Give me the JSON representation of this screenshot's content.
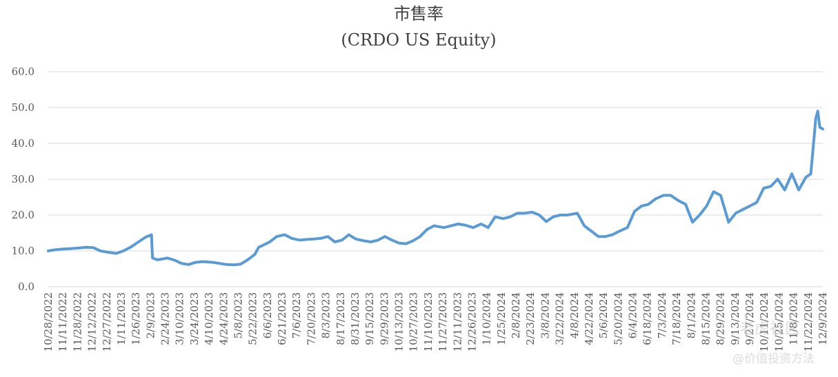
{
  "chart_data": {
    "type": "line",
    "title": "市售率",
    "subtitle": "(CRDO US Equity)",
    "ylim": [
      0,
      60
    ],
    "yticks": [
      "0.0",
      "10.0",
      "20.0",
      "30.0",
      "40.0",
      "50.0",
      "60.0"
    ],
    "grid": true,
    "legend": "none",
    "color": "#5b9bd5",
    "x_start": "2022-10-28",
    "x_end": "2024-12-09",
    "xtick_labels": [
      "10/28/2022",
      "11/11/2022",
      "11/28/2022",
      "12/12/2022",
      "12/27/2022",
      "1/11/2023",
      "1/26/2023",
      "2/9/2023",
      "2/24/2023",
      "3/10/2023",
      "3/24/2023",
      "4/10/2023",
      "4/24/2023",
      "5/8/2023",
      "5/22/2023",
      "6/6/2023",
      "6/21/2023",
      "7/6/2023",
      "7/20/2023",
      "8/3/2023",
      "8/17/2023",
      "8/31/2023",
      "9/15/2023",
      "9/29/2023",
      "10/13/2023",
      "10/27/2023",
      "11/10/2023",
      "11/27/2023",
      "12/11/2023",
      "12/26/2023",
      "1/10/2024",
      "1/25/2024",
      "2/8/2024",
      "2/23/2024",
      "3/8/2024",
      "3/22/2024",
      "4/8/2024",
      "4/22/2024",
      "5/6/2024",
      "5/20/2024",
      "6/4/2024",
      "6/18/2024",
      "7/3/2024",
      "7/18/2024",
      "8/1/2024",
      "8/15/2024",
      "8/29/2024",
      "9/13/2024",
      "9/27/2024",
      "10/11/2024",
      "10/25/2024",
      "11/8/2024",
      "11/22/2024",
      "12/9/2024"
    ],
    "series": [
      {
        "x": [
          "2022-10-28",
          "2022-11-04",
          "2022-11-11",
          "2022-11-18",
          "2022-11-28",
          "2022-12-05",
          "2022-12-12",
          "2022-12-19",
          "2022-12-27",
          "2023-01-04",
          "2023-01-11",
          "2023-01-18",
          "2023-01-26",
          "2023-02-02",
          "2023-02-08",
          "2023-02-09",
          "2023-02-14",
          "2023-02-24",
          "2023-03-03",
          "2023-03-10",
          "2023-03-17",
          "2023-03-24",
          "2023-03-31",
          "2023-04-10",
          "2023-04-17",
          "2023-04-24",
          "2023-05-01",
          "2023-05-08",
          "2023-05-15",
          "2023-05-22",
          "2023-05-26",
          "2023-06-06",
          "2023-06-13",
          "2023-06-21",
          "2023-06-28",
          "2023-07-06",
          "2023-07-13",
          "2023-07-20",
          "2023-07-27",
          "2023-08-03",
          "2023-08-10",
          "2023-08-17",
          "2023-08-24",
          "2023-08-31",
          "2023-09-08",
          "2023-09-15",
          "2023-09-22",
          "2023-09-29",
          "2023-10-06",
          "2023-10-13",
          "2023-10-20",
          "2023-10-27",
          "2023-11-03",
          "2023-11-10",
          "2023-11-17",
          "2023-11-27",
          "2023-12-04",
          "2023-12-11",
          "2023-12-18",
          "2023-12-26",
          "2024-01-03",
          "2024-01-10",
          "2024-01-17",
          "2024-01-25",
          "2024-02-01",
          "2024-02-08",
          "2024-02-15",
          "2024-02-23",
          "2024-03-01",
          "2024-03-08",
          "2024-03-15",
          "2024-03-22",
          "2024-03-29",
          "2024-04-08",
          "2024-04-15",
          "2024-04-22",
          "2024-04-29",
          "2024-05-06",
          "2024-05-13",
          "2024-05-20",
          "2024-05-28",
          "2024-06-04",
          "2024-06-11",
          "2024-06-18",
          "2024-06-25",
          "2024-07-03",
          "2024-07-10",
          "2024-07-18",
          "2024-07-25",
          "2024-08-01",
          "2024-08-08",
          "2024-08-15",
          "2024-08-22",
          "2024-08-29",
          "2024-09-06",
          "2024-09-13",
          "2024-09-20",
          "2024-09-27",
          "2024-10-04",
          "2024-10-11",
          "2024-10-18",
          "2024-10-25",
          "2024-11-01",
          "2024-11-08",
          "2024-11-15",
          "2024-11-22",
          "2024-11-27",
          "2024-12-02",
          "2024-12-04",
          "2024-12-06",
          "2024-12-09"
        ],
        "values": [
          10.0,
          10.3,
          10.5,
          10.6,
          10.8,
          11.0,
          10.9,
          10.0,
          9.6,
          9.3,
          10.0,
          11.0,
          12.5,
          13.8,
          14.5,
          8.0,
          7.5,
          8.0,
          7.4,
          6.5,
          6.2,
          6.8,
          7.0,
          6.8,
          6.5,
          6.2,
          6.1,
          6.3,
          7.5,
          9.0,
          11.0,
          12.5,
          14.0,
          14.5,
          13.5,
          13.0,
          13.2,
          13.3,
          13.5,
          14.0,
          12.5,
          13.0,
          14.5,
          13.3,
          12.8,
          12.5,
          13.0,
          14.0,
          13.0,
          12.2,
          12.0,
          12.8,
          14.0,
          16.0,
          17.0,
          16.5,
          17.0,
          17.5,
          17.2,
          16.5,
          17.5,
          16.5,
          19.5,
          19.0,
          19.5,
          20.5,
          20.5,
          20.8,
          20.0,
          18.2,
          19.5,
          20.0,
          20.0,
          20.5,
          17.0,
          15.5,
          14.0,
          14.0,
          14.5,
          15.5,
          16.5,
          21.0,
          22.5,
          23.0,
          24.5,
          25.5,
          25.5,
          24.0,
          23.0,
          18.0,
          20.0,
          22.5,
          26.5,
          25.5,
          18.0,
          20.5,
          21.5,
          22.5,
          23.5,
          27.5,
          28.0,
          30.0,
          27.0,
          31.5,
          27.0,
          30.5,
          31.5,
          47.0,
          49.0,
          44.5,
          44.0
        ]
      }
    ]
  },
  "watermark": {
    "line1": "老虎社区",
    "line2": "@价值投资方法"
  }
}
